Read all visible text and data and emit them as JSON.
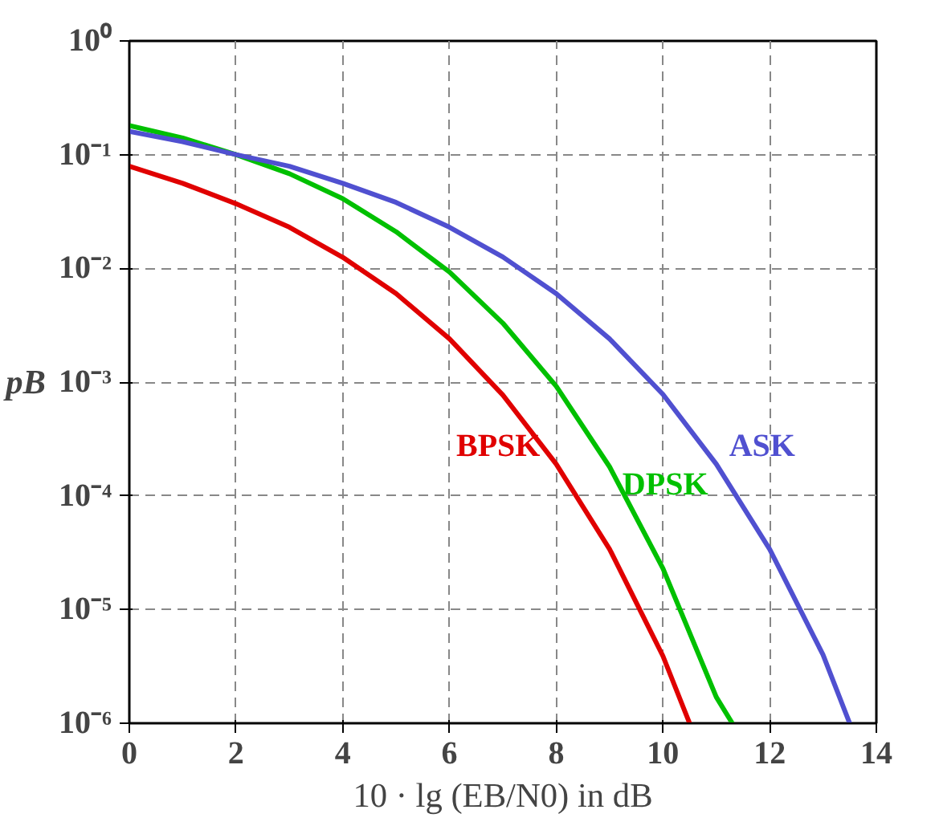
{
  "chart_data": {
    "type": "line",
    "xlabel": "10 · lg (EB/N0) in dB",
    "ylabel": "pB",
    "log": "y",
    "xlim": [
      0,
      14
    ],
    "xticks": [
      0,
      2,
      4,
      6,
      8,
      10,
      12,
      14
    ],
    "ylim": [
      1e-06,
      1
    ],
    "yticks": [
      {
        "value": 1,
        "label": "10⁰"
      },
      {
        "value": 0.1,
        "label": "10⁻¹"
      },
      {
        "value": 0.01,
        "label": "10⁻²"
      },
      {
        "value": 0.001,
        "label": "10⁻³"
      },
      {
        "value": 0.0001,
        "label": "10⁻⁴"
      },
      {
        "value": 1e-05,
        "label": "10⁻⁵"
      },
      {
        "value": 1e-06,
        "label": "10⁻⁶"
      }
    ],
    "grid": true,
    "marker": "none",
    "line_style": "solid",
    "series": [
      {
        "name": "BPSK",
        "color": "#e00000",
        "x": [
          0,
          1,
          2,
          3,
          4,
          5,
          6,
          7,
          8,
          9,
          10,
          10.5
        ],
        "values": [
          0.079,
          0.056,
          0.037,
          0.023,
          0.0125,
          0.006,
          0.0024,
          0.00077,
          0.00019,
          3.4e-05,
          3.9e-06,
          1e-06
        ]
      },
      {
        "name": "DPSK",
        "color": "#00c000",
        "x": [
          0,
          1,
          2,
          3,
          4,
          5,
          6,
          7,
          8,
          9,
          10,
          11,
          11.3
        ],
        "values": [
          0.18,
          0.14,
          0.1,
          0.068,
          0.041,
          0.021,
          0.0093,
          0.0033,
          0.00092,
          0.00018,
          2.3e-05,
          1.7e-06,
          1e-06
        ]
      },
      {
        "name": "ASK",
        "color": "#5050d0",
        "x": [
          0,
          1,
          2,
          3,
          4,
          5,
          6,
          7,
          8,
          9,
          10,
          11,
          12,
          13,
          13.5
        ],
        "values": [
          0.16,
          0.13,
          0.1,
          0.079,
          0.056,
          0.038,
          0.023,
          0.0126,
          0.006,
          0.0024,
          0.00078,
          0.00019,
          3.4e-05,
          4e-06,
          1e-06
        ]
      }
    ]
  }
}
